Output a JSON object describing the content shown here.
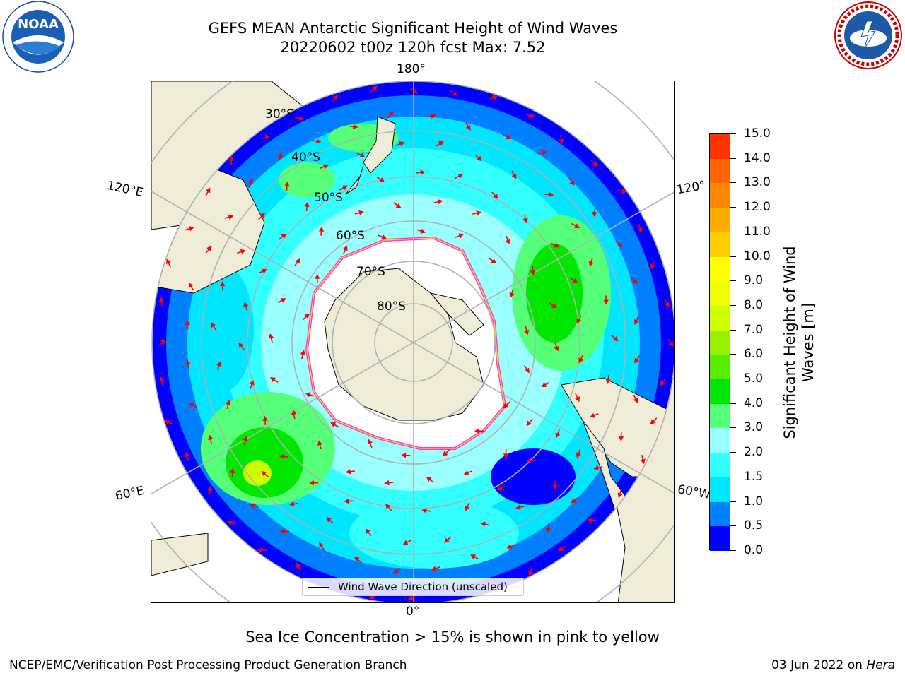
{
  "title": {
    "line1": "GEFS MEAN Antarctic Significant Height of Wind Waves",
    "line2": "20220602 t00z 120h fcst   Max: 7.52"
  },
  "logos": {
    "left": {
      "name": "noaa-logo",
      "text": "NOAA",
      "ring_text": "NATIONAL OCEANIC AND ATMOSPHERIC ADMINISTRATION · U.S. DEPARTMENT OF COMMERCE"
    },
    "right": {
      "name": "nws-logo",
      "ring_text": "NATIONAL WEATHER SERVICE"
    }
  },
  "map": {
    "projection": "south-polar-stereographic",
    "longitude_labels": {
      "top": "180°",
      "bottom": "0°",
      "left_upper": "120°E",
      "left_lower": "60°E",
      "right_upper": "120°",
      "right_lower": "60°W"
    },
    "latitude_labels": [
      "30°S",
      "40°S",
      "50°S",
      "60°S",
      "70°S",
      "80°S"
    ],
    "legend": "Wind Wave Direction (unscaled)",
    "colors": {
      "land": "#efecd8",
      "ice_edge": [
        "#ff33cc",
        "#ffcc33"
      ],
      "arrow": "#ff0000",
      "gridline": "#b0b0b0"
    }
  },
  "colorbar": {
    "title": "Significant Height of Wind Waves [m]",
    "title_lines": [
      "Significant Height of Wind",
      "Waves [m]"
    ],
    "ticks": [
      "15.0",
      "14.0",
      "13.0",
      "12.0",
      "11.0",
      "10.0",
      "9.0",
      "8.0",
      "7.0",
      "6.0",
      "5.0",
      "4.0",
      "3.0",
      "2.0",
      "1.5",
      "1.0",
      "0.5",
      "0.0"
    ],
    "colors": [
      "#0000ff",
      "#0080ff",
      "#00e6ff",
      "#33ffff",
      "#99ffff",
      "#55ff77",
      "#00e600",
      "#55ee00",
      "#99ee00",
      "#ccff00",
      "#eeff00",
      "#ffff00",
      "#ffcc00",
      "#ffaa00",
      "#ff8800",
      "#ff6600",
      "#ff3300",
      "#ff0000"
    ]
  },
  "note": "Sea Ice Concentration > 15% is shown in pink to yellow",
  "footer": {
    "left": "NCEP/EMC/Verification Post Processing Product Generation Branch",
    "right_prefix": "03 Jun 2022 on ",
    "right_italic": "Hera"
  }
}
